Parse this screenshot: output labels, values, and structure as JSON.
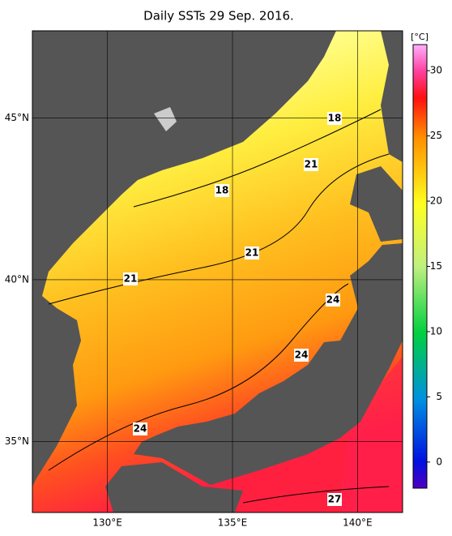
{
  "title": "Daily SSTs 29 Sep. 2016.",
  "map": {
    "lonlim": [
      127,
      141.8
    ],
    "latlim": [
      32.8,
      47.7
    ],
    "lonticks": [
      {
        "value": 130,
        "label": "130°E"
      },
      {
        "value": 135,
        "label": "135°E"
      },
      {
        "value": 140,
        "label": "140°E"
      }
    ],
    "latticks": [
      {
        "value": 45,
        "label": "45°N"
      },
      {
        "value": 40,
        "label": "40°N"
      },
      {
        "value": 35,
        "label": "35°N"
      }
    ],
    "contour_labels": [
      "18",
      "21",
      "18",
      "21",
      "21",
      "24",
      "24",
      "24",
      "27"
    ]
  },
  "colorbar": {
    "unit": "[°C]",
    "lim": [
      -2,
      32
    ],
    "ticks": [
      0,
      5,
      10,
      15,
      20,
      25,
      30
    ]
  }
}
